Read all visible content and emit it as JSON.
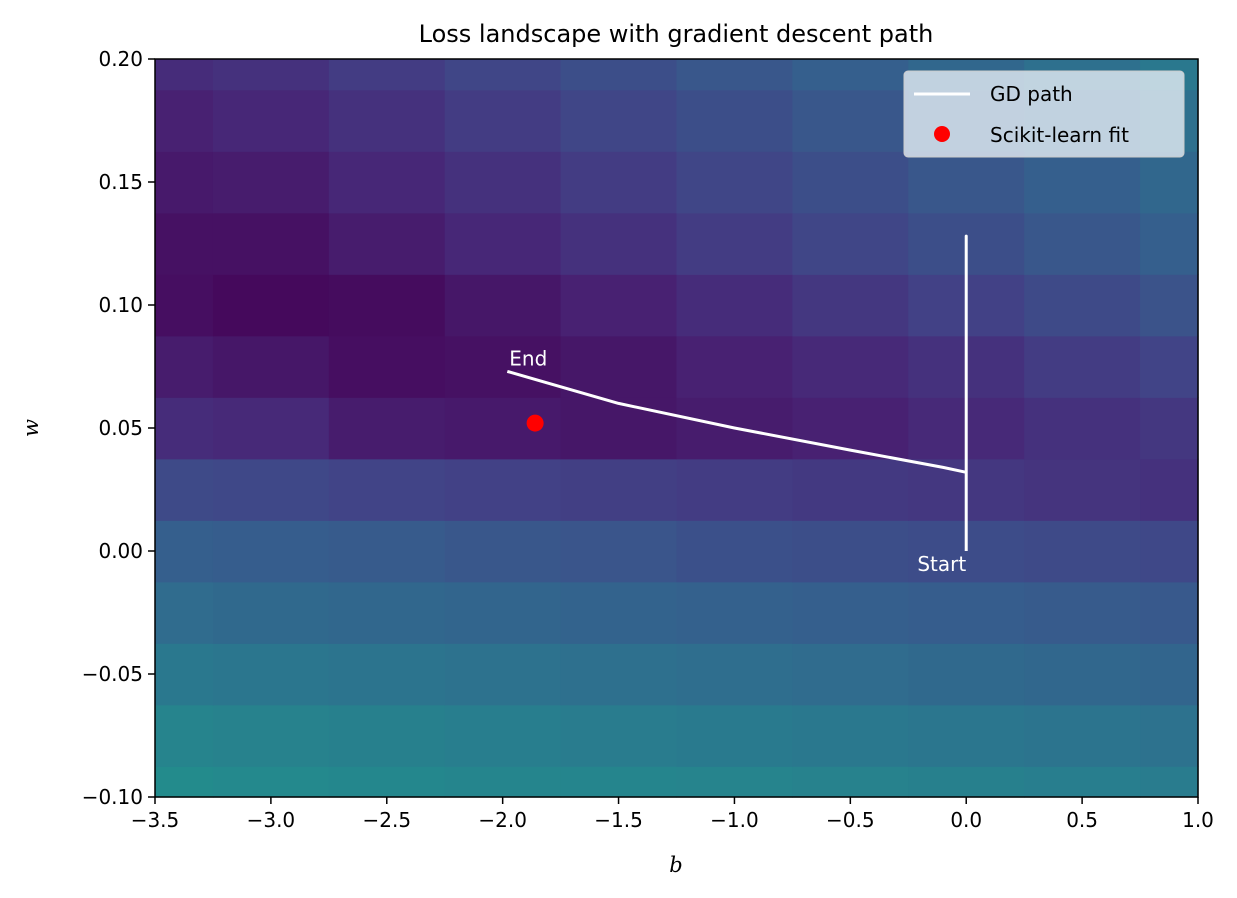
{
  "chart_data": {
    "type": "heatmap",
    "title": "Loss landscape with gradient descent path",
    "xlabel": "b",
    "ylabel": "w",
    "xlim": [
      -3.5,
      1.0
    ],
    "ylim": [
      -0.1,
      0.2
    ],
    "xticks": [
      -3.5,
      -3.0,
      -2.5,
      -2.0,
      -1.5,
      -1.0,
      -0.5,
      0.0,
      0.5,
      1.0
    ],
    "yticks": [
      -0.1,
      -0.05,
      0.0,
      0.05,
      0.1,
      0.15,
      0.2
    ],
    "xtick_labels": [
      "−3.5",
      "−3.0",
      "−2.5",
      "−2.0",
      "−1.5",
      "−1.0",
      "−0.5",
      "0.0",
      "0.5",
      "1.0"
    ],
    "ytick_labels": [
      "−0.10",
      "−0.05",
      "0.00",
      "0.05",
      "0.10",
      "0.15",
      "0.20"
    ],
    "grid": false,
    "colormap": "viridis",
    "heatmap": {
      "b_centers": [
        -3.5,
        -3.0,
        -2.5,
        -2.0,
        -1.5,
        -1.0,
        -0.5,
        0.0,
        0.5,
        1.0
      ],
      "w_centers": [
        -0.1,
        -0.075,
        -0.05,
        -0.025,
        0.0,
        0.025,
        0.05,
        0.075,
        0.1,
        0.125,
        0.15,
        0.175,
        0.2
      ],
      "values_rows_bottom_to_top": [
        [
          0.6,
          0.59,
          0.58,
          0.57,
          0.57,
          0.56,
          0.55,
          0.54,
          0.53,
          0.52
        ],
        [
          0.56,
          0.55,
          0.54,
          0.53,
          0.52,
          0.51,
          0.5,
          0.49,
          0.48,
          0.47
        ],
        [
          0.5,
          0.49,
          0.48,
          0.47,
          0.46,
          0.45,
          0.44,
          0.43,
          0.42,
          0.41
        ],
        [
          0.44,
          0.43,
          0.42,
          0.41,
          0.4,
          0.39,
          0.38,
          0.37,
          0.36,
          0.35
        ],
        [
          0.38,
          0.37,
          0.36,
          0.34,
          0.33,
          0.31,
          0.3,
          0.29,
          0.28,
          0.27
        ],
        [
          0.28,
          0.27,
          0.25,
          0.24,
          0.23,
          0.22,
          0.21,
          0.2,
          0.19,
          0.18
        ],
        [
          0.16,
          0.15,
          0.1,
          0.09,
          0.08,
          0.1,
          0.12,
          0.15,
          0.18,
          0.2
        ],
        [
          0.1,
          0.08,
          0.05,
          0.06,
          0.08,
          0.12,
          0.15,
          0.18,
          0.22,
          0.25
        ],
        [
          0.05,
          0.03,
          0.04,
          0.08,
          0.12,
          0.16,
          0.2,
          0.24,
          0.28,
          0.32
        ],
        [
          0.06,
          0.06,
          0.1,
          0.14,
          0.18,
          0.22,
          0.26,
          0.3,
          0.34,
          0.38
        ],
        [
          0.09,
          0.1,
          0.14,
          0.18,
          0.22,
          0.26,
          0.3,
          0.34,
          0.38,
          0.42
        ],
        [
          0.12,
          0.14,
          0.18,
          0.22,
          0.26,
          0.3,
          0.34,
          0.38,
          0.42,
          0.46
        ],
        [
          0.16,
          0.18,
          0.22,
          0.26,
          0.3,
          0.34,
          0.38,
          0.42,
          0.46,
          0.5
        ]
      ],
      "vmin": 0.0,
      "vmax": 1.0
    },
    "series": [
      {
        "name": "GD path",
        "type": "line",
        "color": "#ffffff",
        "points": [
          [
            0.0,
            0.0
          ],
          [
            0.0,
            0.128
          ],
          [
            0.0,
            0.032
          ],
          [
            -0.1,
            0.034
          ],
          [
            -0.5,
            0.041
          ],
          [
            -1.0,
            0.05
          ],
          [
            -1.5,
            0.06
          ],
          [
            -1.98,
            0.073
          ]
        ]
      },
      {
        "name": "Scikit-learn fit",
        "type": "scatter",
        "color": "#ff0000",
        "points": [
          [
            -1.86,
            0.052
          ]
        ]
      }
    ],
    "annotations": [
      {
        "text": "Start",
        "b": 0.0,
        "w": 0.0
      },
      {
        "text": "End",
        "b": -1.98,
        "w": 0.073
      }
    ],
    "legend": {
      "placement": "top-right",
      "entries": [
        "GD path",
        "Scikit-learn fit"
      ]
    }
  }
}
